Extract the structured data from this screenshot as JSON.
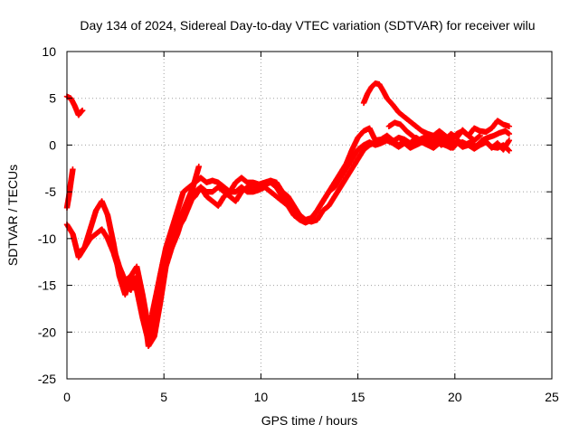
{
  "chart_data": {
    "type": "scatter",
    "title": "Day 134 of 2024, Sidereal Day-to-day VTEC variation (SDTVAR) for receiver wilu",
    "xlabel": "GPS time / hours",
    "ylabel": "SDTVAR / TECUs",
    "xlim": [
      0,
      25
    ],
    "ylim": [
      -25,
      10
    ],
    "xticks": [
      0,
      5,
      10,
      15,
      20,
      25
    ],
    "yticks": [
      -25,
      -20,
      -15,
      -10,
      -5,
      0,
      5,
      10
    ],
    "grid": true,
    "marker": "+",
    "marker_color": "#ff0000",
    "series": [
      {
        "x": [
          0.0,
          0.2,
          0.4,
          0.6,
          0.7,
          0.8
        ],
        "values": [
          5.2,
          5.0,
          4.2,
          3.2,
          3.5,
          3.7
        ]
      },
      {
        "x": [
          0.0,
          0.1,
          0.2,
          0.3
        ],
        "values": [
          -6.7,
          -5.5,
          -4.0,
          -2.6
        ]
      },
      {
        "x": [
          0.0,
          0.3,
          0.6,
          0.9,
          1.2,
          1.5,
          1.8,
          2.1,
          2.4,
          2.7,
          3.0,
          3.3,
          3.6,
          3.9,
          4.2,
          4.5,
          4.8,
          5.1,
          5.4,
          5.7,
          6.0,
          6.3,
          6.6,
          6.9,
          7.2,
          7.5,
          7.8,
          8.1,
          8.4,
          8.7,
          9.0,
          9.3,
          9.6,
          9.9,
          10.2,
          10.5,
          10.8,
          11.1,
          11.4,
          11.7,
          12.0,
          12.3,
          12.6,
          12.9,
          13.2,
          13.5,
          13.8,
          14.1,
          14.4,
          14.7,
          15.0,
          15.3,
          15.6,
          15.9,
          16.2,
          16.5,
          16.8,
          17.1,
          17.4,
          17.7,
          18.0,
          18.3,
          18.6,
          18.9,
          19.2,
          19.5,
          19.8,
          20.1,
          20.4,
          20.7,
          21.0,
          21.3,
          21.6,
          21.9,
          22.2,
          22.5,
          22.8
        ],
        "values": [
          -8.5,
          -9.5,
          -12.0,
          -11.0,
          -9.0,
          -7.0,
          -6.0,
          -7.5,
          -10.5,
          -14.0,
          -16.0,
          -14.0,
          -13.0,
          -16.0,
          -19.5,
          -17.5,
          -14.0,
          -11.0,
          -9.0,
          -7.0,
          -5.0,
          -4.5,
          -4.0,
          -3.5,
          -4.0,
          -3.8,
          -4.0,
          -4.5,
          -5.0,
          -4.0,
          -3.5,
          -4.0,
          -4.0,
          -4.2,
          -4.0,
          -3.8,
          -4.0,
          -5.0,
          -5.5,
          -6.5,
          -7.5,
          -8.0,
          -7.8,
          -7.0,
          -6.0,
          -5.0,
          -4.0,
          -3.0,
          -2.0,
          -0.5,
          0.8,
          1.5,
          1.8,
          0.5,
          0.6,
          1.0,
          0.4,
          0.8,
          0.6,
          0.2,
          0.8,
          0.4,
          1.0,
          0.0,
          1.0,
          0.5,
          1.2,
          0.8,
          1.6,
          1.0,
          1.8,
          1.5,
          1.4,
          1.8,
          2.6,
          2.2,
          2.0
        ]
      },
      {
        "x": [
          0.6,
          0.9,
          1.2,
          1.5,
          1.8,
          2.1,
          2.4,
          2.7,
          3.0,
          3.3,
          3.6,
          3.9,
          4.2,
          4.5,
          4.8,
          5.1,
          5.4,
          5.7,
          6.0,
          6.3,
          6.6,
          6.9,
          7.2,
          7.5,
          7.8,
          8.1,
          8.4,
          8.7,
          9.0,
          9.3,
          9.6,
          9.9,
          10.2,
          10.5,
          10.8,
          11.1,
          11.4,
          11.7,
          12.0,
          12.3,
          12.6,
          12.9,
          13.2,
          13.5,
          13.8,
          14.1,
          14.4,
          14.7,
          15.0,
          15.3,
          15.6,
          15.9,
          16.2,
          16.5,
          16.8,
          17.1,
          17.4,
          17.7,
          18.0,
          18.3,
          18.6,
          18.9,
          19.2,
          19.5,
          19.8,
          20.1,
          20.4,
          20.7,
          21.0,
          21.3,
          21.6,
          21.9,
          22.2,
          22.5,
          22.8
        ],
        "values": [
          -11.5,
          -11.0,
          -10.0,
          -9.5,
          -9.0,
          -10.0,
          -11.5,
          -13.5,
          -15.0,
          -15.5,
          -14.0,
          -16.5,
          -21.5,
          -20.5,
          -17.0,
          -13.0,
          -11.0,
          -9.5,
          -7.5,
          -6.0,
          -5.5,
          -4.5,
          -5.0,
          -5.0,
          -4.5,
          -5.0,
          -5.5,
          -6.0,
          -5.0,
          -4.5,
          -4.5,
          -4.5,
          -4.2,
          -4.0,
          -4.5,
          -5.5,
          -6.0,
          -7.0,
          -7.5,
          -8.0,
          -8.2,
          -8.0,
          -7.0,
          -6.5,
          -5.5,
          -4.5,
          -3.5,
          -2.5,
          -1.5,
          -0.5,
          0.0,
          0.3,
          0.6,
          1.0,
          0.5,
          0.0,
          0.4,
          -0.2,
          0.3,
          0.5,
          0.8,
          0.2,
          0.4,
          0.0,
          0.5,
          0.2,
          0.3,
          0.0,
          -0.2,
          0.2,
          0.4,
          -0.3,
          0.2,
          -0.5,
          0.5
        ]
      },
      {
        "x": [
          2.4,
          2.7,
          3.0,
          3.3,
          3.6,
          3.9,
          4.2,
          4.5,
          4.8,
          5.1,
          5.4,
          5.7,
          6.0,
          6.3,
          6.6,
          6.9,
          7.2,
          7.5,
          7.8,
          8.1,
          8.4,
          8.7,
          9.0,
          9.3,
          9.6,
          9.9,
          10.2,
          10.5,
          10.8,
          11.1,
          11.4,
          11.7,
          12.0,
          12.3,
          12.6,
          12.9,
          13.2,
          13.5,
          13.8,
          14.1,
          14.4,
          14.7,
          15.0,
          15.3,
          15.6,
          15.9,
          16.2,
          16.5,
          16.8,
          17.1,
          17.4,
          17.7,
          18.0,
          18.3,
          18.6,
          18.9,
          19.2,
          19.5,
          19.8,
          20.1,
          20.4,
          20.7,
          21.0,
          21.3,
          21.6,
          21.9,
          22.2,
          22.5,
          22.8
        ],
        "values": [
          -11.0,
          -13.0,
          -14.5,
          -14.0,
          -15.5,
          -18.5,
          -21.0,
          -18.5,
          -15.0,
          -12.0,
          -10.5,
          -9.0,
          -8.0,
          -6.5,
          -5.0,
          -4.5,
          -5.5,
          -6.0,
          -6.5,
          -5.5,
          -5.0,
          -5.0,
          -4.5,
          -5.0,
          -5.0,
          -4.8,
          -4.5,
          -5.0,
          -5.5,
          -6.0,
          -6.5,
          -7.5,
          -8.0,
          -8.3,
          -8.0,
          -7.0,
          -6.0,
          -5.0,
          -4.5,
          -3.5,
          -2.5,
          -1.5,
          -0.5,
          0.0,
          0.3,
          0.0,
          0.2,
          0.5,
          0.2,
          -0.2,
          0.2,
          -0.3,
          0.0,
          0.3,
          0.0,
          -0.3,
          0.2,
          0.0,
          -0.3,
          0.3,
          -0.2,
          0.0,
          -0.4,
          0.0,
          0.3,
          -0.2,
          -0.3,
          0.0,
          -0.6
        ]
      },
      {
        "x": [
          4.4,
          4.7,
          5.0,
          5.3,
          5.6,
          5.9,
          6.2,
          6.5,
          6.8
        ],
        "values": [
          -18.0,
          -15.0,
          -12.0,
          -10.5,
          -9.0,
          -7.5,
          -6.0,
          -4.5,
          -2.3
        ]
      },
      {
        "x": [
          15.3,
          15.5,
          15.7,
          15.9,
          16.1,
          16.3,
          16.5,
          16.8,
          17.1,
          17.4,
          17.7,
          18.0,
          18.3,
          18.6,
          18.9,
          19.2,
          19.5,
          19.8,
          20.1,
          20.4,
          20.7,
          21.0,
          21.3
        ],
        "values": [
          4.5,
          5.5,
          6.2,
          6.6,
          6.5,
          5.8,
          5.0,
          4.3,
          3.5,
          3.0,
          2.5,
          2.0,
          1.5,
          1.2,
          1.0,
          1.5,
          1.0,
          0.5,
          1.2,
          1.5,
          1.0,
          0.5,
          1.0
        ]
      },
      {
        "x": [
          16.6,
          16.9,
          17.2,
          17.5,
          17.8,
          18.1,
          18.4,
          18.7,
          19.0,
          19.3,
          19.6,
          19.9,
          20.2,
          20.5,
          20.8,
          21.1,
          21.4,
          21.7,
          22.0,
          22.3,
          22.6,
          22.8
        ],
        "values": [
          2.0,
          2.4,
          2.2,
          1.5,
          1.0,
          0.5,
          0.8,
          0.2,
          0.6,
          0.0,
          0.5,
          -0.3,
          0.4,
          0.0,
          0.3,
          -0.2,
          0.5,
          0.8,
          1.0,
          1.3,
          1.5,
          1.2
        ]
      }
    ]
  }
}
